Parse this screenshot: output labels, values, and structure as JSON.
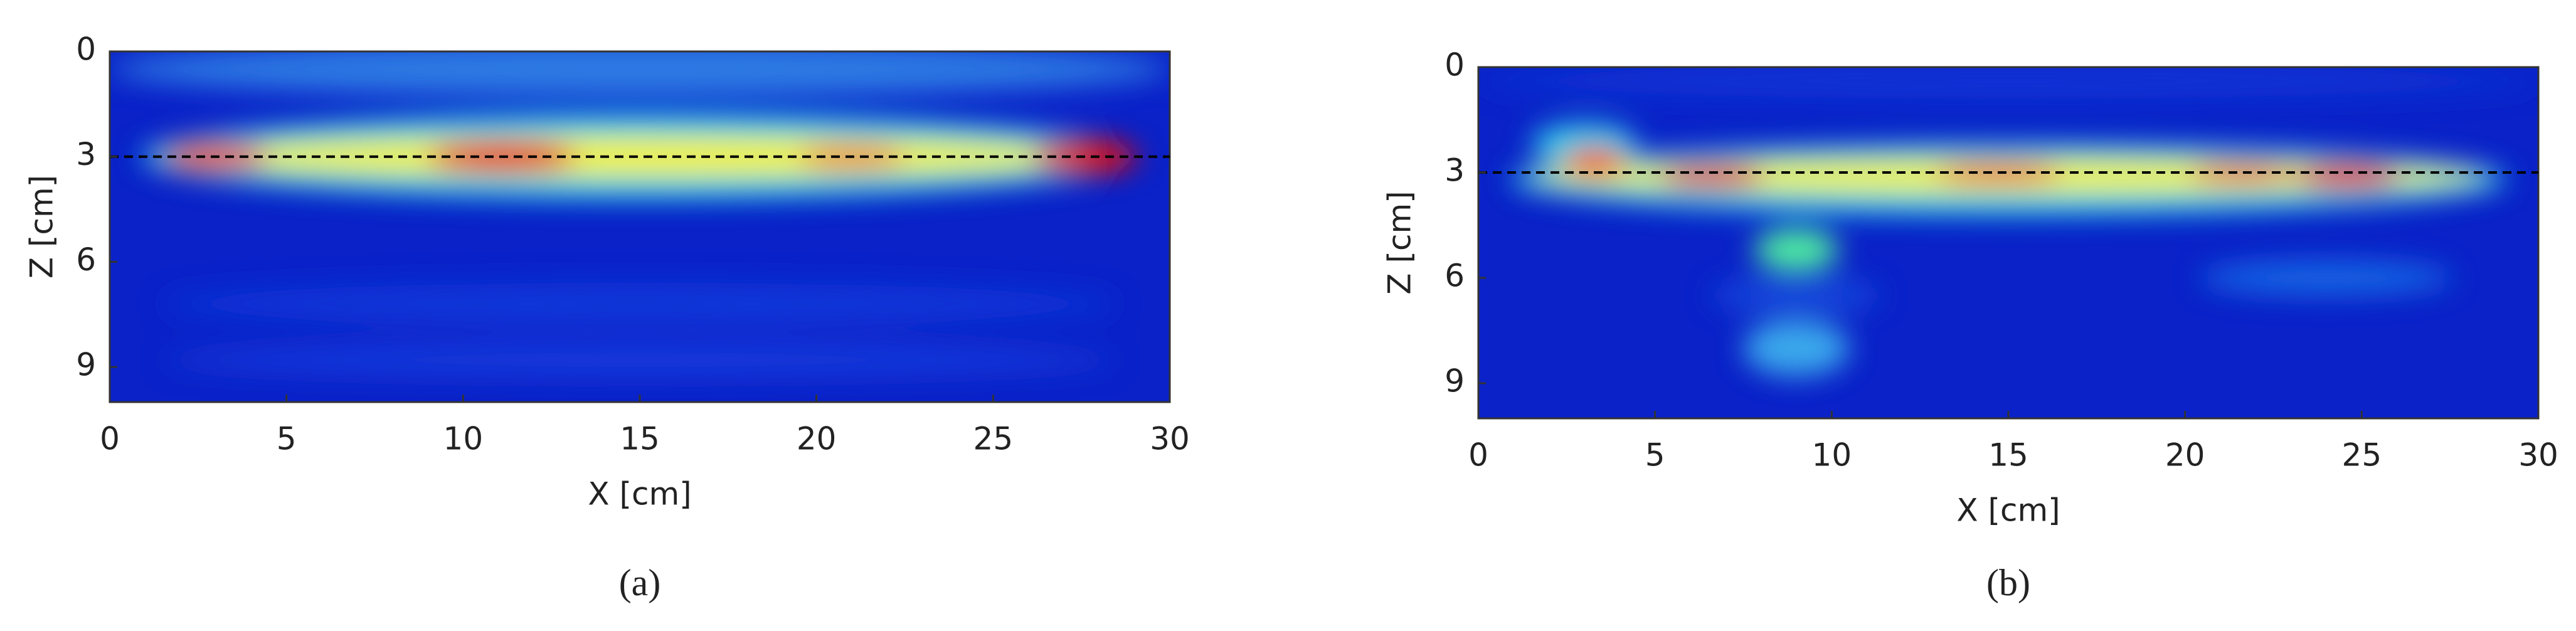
{
  "chart_data": [
    {
      "type": "heatmap",
      "xlabel": "X [cm]",
      "ylabel": "Z [cm]",
      "caption": "(a)",
      "xlim": [
        0,
        30
      ],
      "xticks": [
        0,
        5,
        10,
        15,
        20,
        25,
        30
      ],
      "ylim": [
        0,
        10
      ],
      "yticks": [
        0,
        3,
        6,
        9
      ],
      "hline": 3
    },
    {
      "type": "heatmap",
      "xlabel": "X [cm]",
      "ylabel": "Z [cm]",
      "caption": "(b)",
      "xlim": [
        0,
        30
      ],
      "xticks": [
        0,
        5,
        10,
        15,
        20,
        25,
        30
      ],
      "ylim": [
        0,
        10
      ],
      "yticks": [
        0,
        3,
        6,
        9
      ],
      "hline": 3
    }
  ]
}
